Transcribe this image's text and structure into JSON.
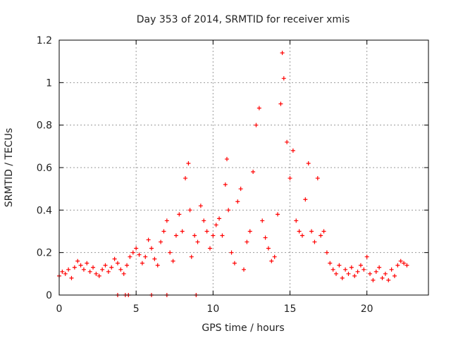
{
  "colors": {
    "series": "#ff0000",
    "grid": "#9a9a9a",
    "axis": "#000000"
  },
  "chart_data": {
    "type": "scatter",
    "title": "Day 353 of 2014, SRMTID for receiver xmis",
    "xlabel": "GPS time / hours",
    "ylabel": "SRMTID / TECUs",
    "xlim": [
      0,
      24
    ],
    "ylim": [
      0,
      1.2
    ],
    "xticks": [
      0,
      5,
      10,
      15,
      20
    ],
    "yticks": [
      0,
      0.2,
      0.4,
      0.6,
      0.8,
      1.0,
      1.2
    ],
    "xtick_labels": [
      "0",
      "5",
      "10",
      "15",
      "20"
    ],
    "ytick_labels": [
      "0",
      "0.2",
      "0.4",
      "0.6",
      "0.8",
      "1",
      "1.2"
    ],
    "grid": true,
    "marker": "plus",
    "series": [
      {
        "name": "SRMTID",
        "x": [
          0.0,
          0.2,
          0.4,
          0.6,
          0.8,
          1.0,
          1.2,
          1.4,
          1.6,
          1.8,
          2.0,
          2.2,
          2.4,
          2.6,
          2.8,
          3.0,
          3.2,
          3.4,
          3.6,
          3.8,
          4.0,
          4.2,
          4.4,
          4.6,
          4.8,
          5.0,
          5.2,
          5.4,
          5.6,
          5.8,
          6.0,
          6.2,
          6.4,
          6.6,
          6.8,
          7.0,
          7.2,
          7.4,
          7.6,
          7.8,
          8.0,
          8.2,
          8.4,
          8.5,
          8.6,
          8.8,
          9.0,
          9.2,
          9.4,
          9.6,
          9.8,
          10.0,
          10.2,
          10.4,
          10.6,
          10.8,
          10.9,
          11.0,
          11.2,
          11.4,
          11.6,
          11.8,
          12.0,
          12.2,
          12.4,
          12.6,
          12.8,
          13.0,
          13.2,
          13.4,
          13.6,
          13.8,
          14.0,
          14.2,
          14.4,
          14.5,
          14.6,
          14.8,
          15.0,
          15.2,
          15.4,
          15.6,
          15.8,
          16.0,
          16.2,
          16.4,
          16.6,
          16.8,
          17.0,
          17.2,
          17.4,
          17.6,
          17.8,
          18.0,
          18.2,
          18.4,
          18.6,
          18.8,
          19.0,
          19.2,
          19.4,
          19.6,
          19.8,
          20.0,
          20.2,
          20.4,
          20.6,
          20.8,
          21.0,
          21.2,
          21.4,
          21.6,
          21.8,
          22.0,
          22.2,
          22.4,
          22.6,
          3.8,
          4.3,
          4.5,
          6.0,
          7.0,
          8.9
        ],
        "y": [
          0.09,
          0.11,
          0.1,
          0.12,
          0.08,
          0.13,
          0.16,
          0.14,
          0.12,
          0.15,
          0.11,
          0.13,
          0.1,
          0.09,
          0.12,
          0.14,
          0.11,
          0.13,
          0.17,
          0.15,
          0.12,
          0.1,
          0.14,
          0.18,
          0.2,
          0.22,
          0.19,
          0.15,
          0.18,
          0.26,
          0.22,
          0.17,
          0.14,
          0.25,
          0.3,
          0.35,
          0.2,
          0.16,
          0.28,
          0.38,
          0.3,
          0.55,
          0.62,
          0.4,
          0.18,
          0.28,
          0.25,
          0.42,
          0.35,
          0.3,
          0.22,
          0.28,
          0.33,
          0.36,
          0.28,
          0.52,
          0.64,
          0.4,
          0.2,
          0.15,
          0.44,
          0.5,
          0.12,
          0.25,
          0.3,
          0.58,
          0.8,
          0.88,
          0.35,
          0.27,
          0.22,
          0.16,
          0.18,
          0.38,
          0.9,
          1.14,
          1.02,
          0.72,
          0.55,
          0.68,
          0.35,
          0.3,
          0.28,
          0.45,
          0.62,
          0.3,
          0.25,
          0.55,
          0.28,
          0.3,
          0.2,
          0.15,
          0.12,
          0.1,
          0.14,
          0.08,
          0.12,
          0.1,
          0.13,
          0.09,
          0.11,
          0.14,
          0.12,
          0.18,
          0.1,
          0.07,
          0.11,
          0.13,
          0.08,
          0.1,
          0.07,
          0.12,
          0.09,
          0.14,
          0.16,
          0.15,
          0.14,
          0.0,
          0.0,
          0.0,
          0.0,
          0.0,
          0.0
        ]
      }
    ]
  }
}
